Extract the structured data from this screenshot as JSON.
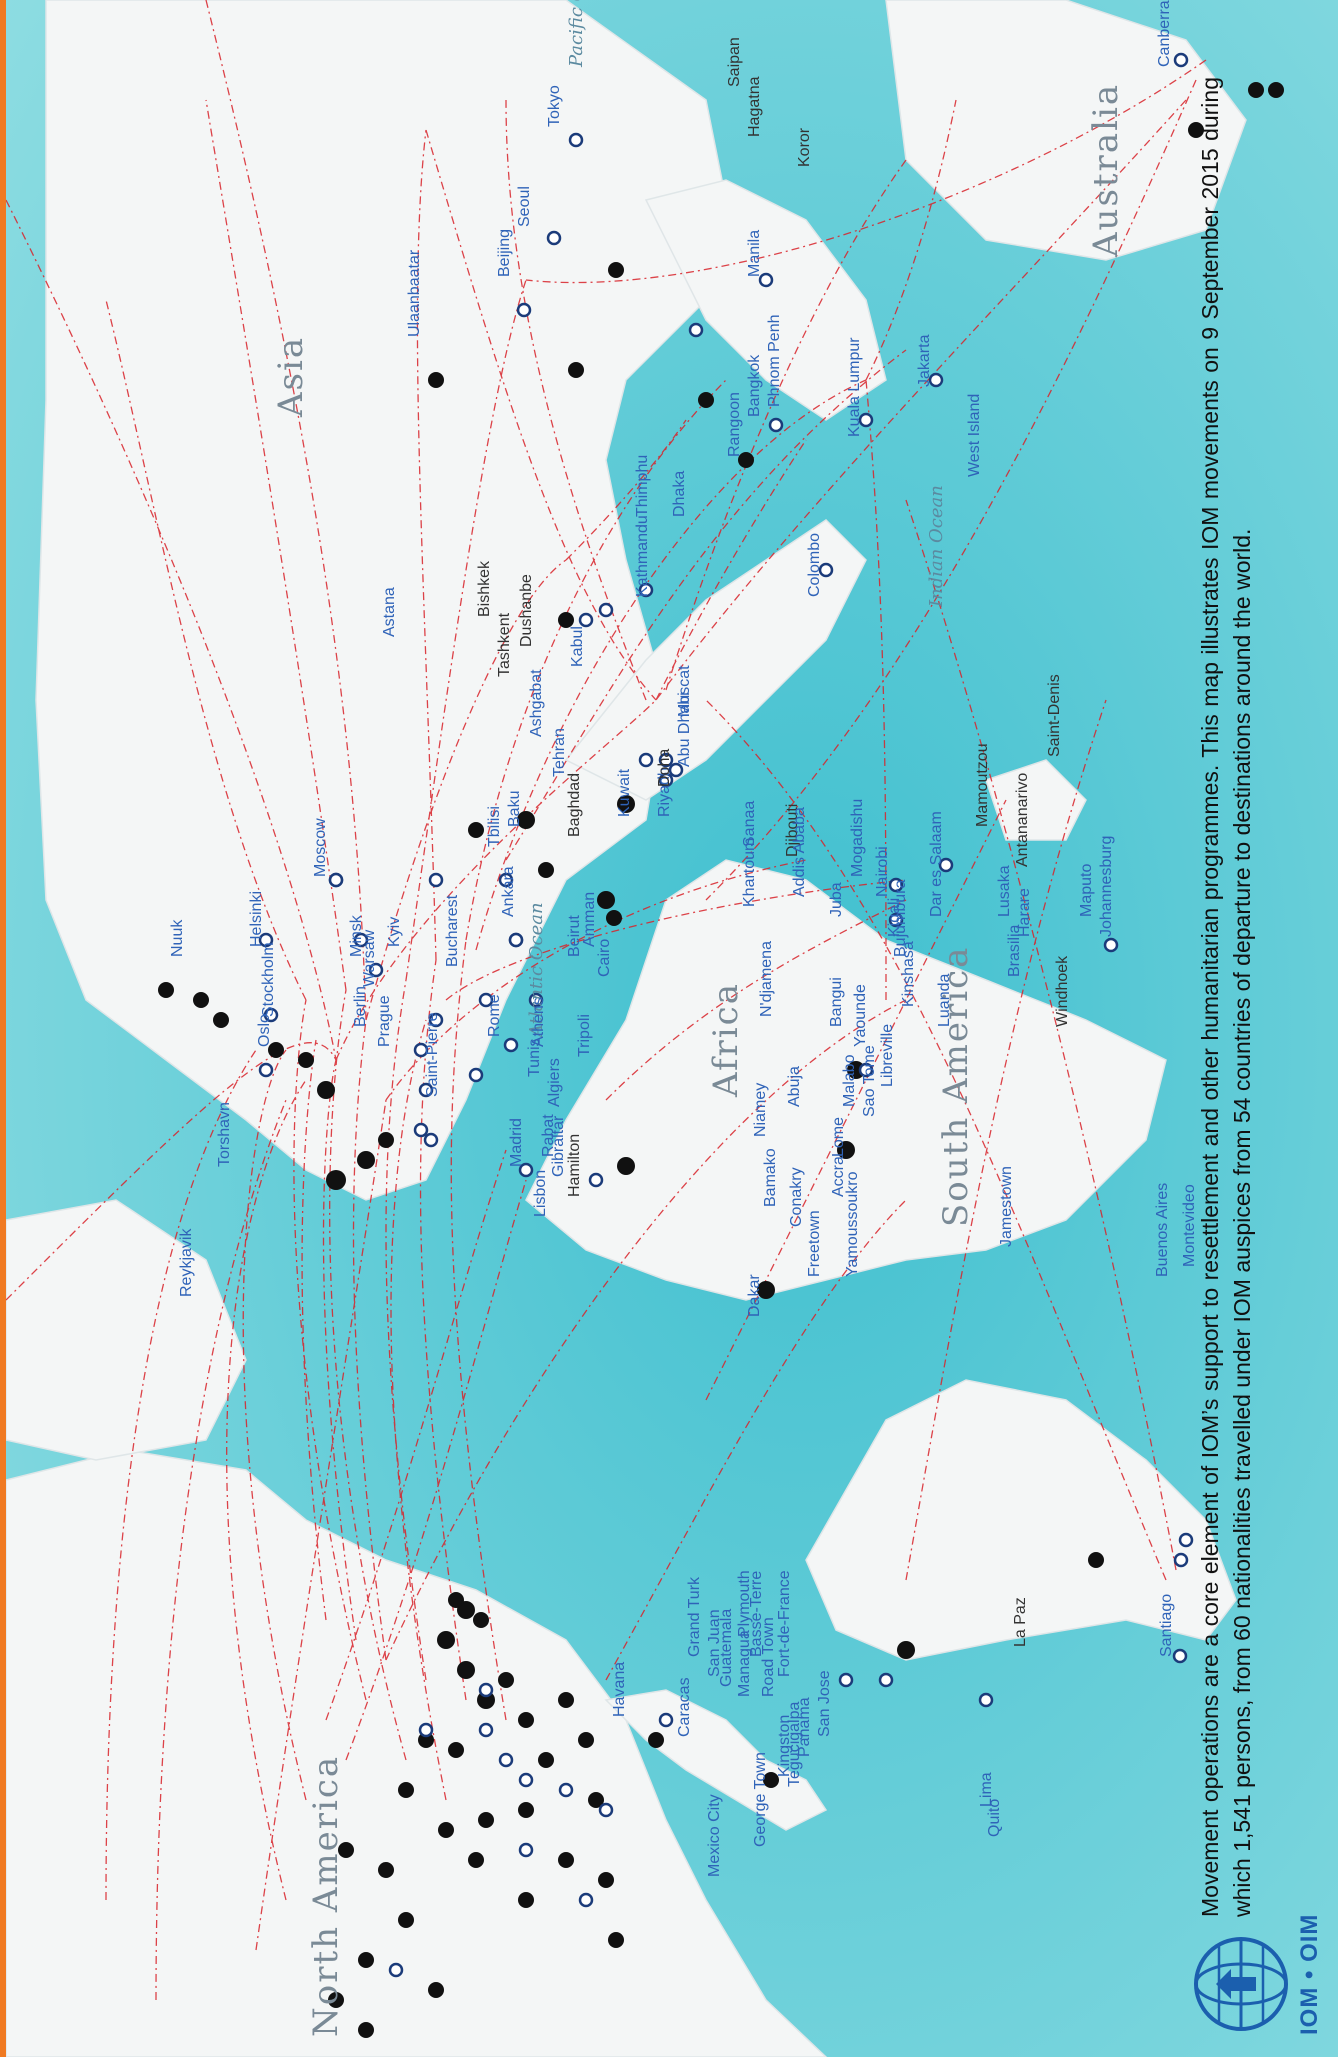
{
  "caption": "Movement operations are a core element of IOM’s support to resettlement and other humanitarian programmes. This map illustrates IOM movements on 9 September 2015 during which 1,541 persons, from 60 nationalities travelled under IOM auspices from 54 countries of departure to destinations around the world.",
  "logo": {
    "text": "IOM • OIM"
  },
  "continents": [
    "North America",
    "South America",
    "Africa",
    "Asia",
    "Australia"
  ],
  "oceans": [
    "Pacific Ocean",
    "Indian Ocean",
    "Atlantic Ocean"
  ],
  "cities": [
    "Canberra",
    "Saipan",
    "Hagatna",
    "Koror",
    "Tokyo",
    "Seoul",
    "Beijing",
    "Ulaanbaatar",
    "Manila",
    "Phnom Penh",
    "Bangkok",
    "Kuala Lumpur",
    "Jakarta",
    "West Island",
    "Rangoon",
    "Dhaka",
    "Thimphu",
    "Kathmandu",
    "Colombo",
    "Astana",
    "Bishkek",
    "Tashkent",
    "Dushanbe",
    "Ashgabat",
    "Kabul",
    "Muscat",
    "Abu Dhabi",
    "Tehran",
    "Baku",
    "Tbilisi",
    "Baghdad",
    "Kuwait",
    "Riyadh",
    "Doha",
    "Sanaa",
    "Djibouti",
    "Addis Ababa",
    "Mogadishu",
    "Khartoum",
    "Juba",
    "Nairobi",
    "Kigali",
    "Bujumbura",
    "Dar es Salaam",
    "Mamoutzou",
    "Antananarivo",
    "Saint-Denis",
    "Moscow",
    "Helsinki",
    "Stockholm",
    "Minsk",
    "Kyiv",
    "Warsaw",
    "Berlin",
    "Prague",
    "Bucharest",
    "Ankara",
    "Beirut",
    "Amman",
    "Cairo",
    "Rome",
    "Athens",
    "Tripoli",
    "Tunis",
    "Algiers",
    "Oslo",
    "Lusaka",
    "Harare",
    "Maputo",
    "Johannesburg",
    "Windhoek",
    "Luanda",
    "Kinshasa",
    "N'djamena",
    "Bangui",
    "Yaounde",
    "Malabo",
    "Libreville",
    "Sao Tome",
    "Abuja",
    "Niamey",
    "Lome",
    "Accra",
    "Bamako",
    "Conakry",
    "Freetown",
    "Yamoussoukro",
    "Dakar",
    "Rabat",
    "Gibraltar",
    "Lisbon",
    "Madrid",
    "Torshavn",
    "Reykjavik",
    "Jamestown",
    "Brasilia",
    "Montevideo",
    "Buenos Aires",
    "Santiago",
    "La Paz",
    "Lima",
    "Quito",
    "Nuuk",
    "Saint-Pierre",
    "Hamilton",
    "Grand Turk",
    "San Juan",
    "Plymouth",
    "Basse-Terre",
    "Road Town",
    "Fort-de-France",
    "Caracas",
    "Kingston",
    "Havana",
    "Guatemala",
    "Managua",
    "San Jose",
    "Panama",
    "Tegucigalpa",
    "Mexico City",
    "George Town"
  ],
  "colors": {
    "ocean": "#4fc6d2",
    "land": "#f3f5f5",
    "route": "#d8232a",
    "accent": "#f07a22",
    "label": "#2f63b8"
  }
}
